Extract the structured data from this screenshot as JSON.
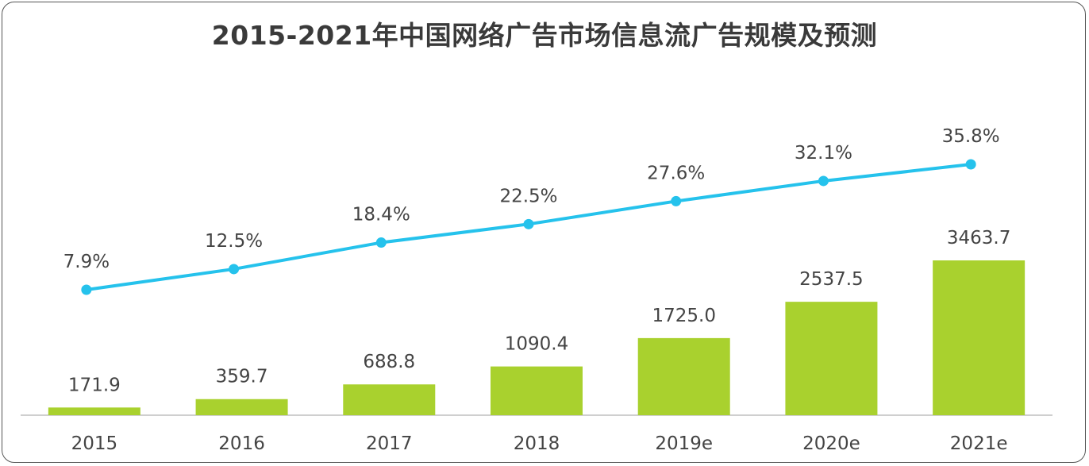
{
  "title": "2015-2021年中国网络广告市场信息流广告规模及预测",
  "chart_data": {
    "type": "bar",
    "categories": [
      "2015",
      "2016",
      "2017",
      "2018",
      "2019e",
      "2020e",
      "2021e"
    ],
    "bar_series": {
      "values": [
        171.9,
        359.7,
        688.8,
        1090.4,
        1725.0,
        2537.5,
        3463.7
      ],
      "labels": [
        "171.9",
        "359.7",
        "688.8",
        "1090.4",
        "1725.0",
        "2537.5",
        "3463.7"
      ],
      "color": "#a9d12e"
    },
    "line_series": {
      "values": [
        7.9,
        12.5,
        18.4,
        22.5,
        27.6,
        32.1,
        35.8
      ],
      "labels": [
        "7.9%",
        "12.5%",
        "18.4%",
        "22.5%",
        "27.6%",
        "32.1%",
        "35.8%"
      ],
      "color": "#25c2ec"
    },
    "grid": false,
    "legend": "none"
  }
}
